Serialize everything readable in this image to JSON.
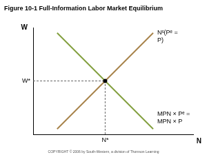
{
  "chart_data": {
    "type": "line",
    "title": "Figure 10-1 Full-Information Labor Market Equilibrium",
    "x_label": "N",
    "y_label": "W",
    "x": [
      1.5,
      4.5,
      7.5
    ],
    "series": [
      {
        "name": "Nˢ(Pᵉ = P)",
        "color": "#a8844c",
        "values": [
          0.5,
          5,
          9.5
        ]
      },
      {
        "name": "MPN × Pᵉ = MPN × P",
        "color": "#84a040",
        "values": [
          9.5,
          5,
          0.5
        ]
      }
    ],
    "equilibrium": {
      "x": 4.5,
      "y": 5,
      "x_label": "N*",
      "y_label": "W*"
    },
    "xlim": [
      0,
      10
    ],
    "ylim": [
      0,
      10
    ],
    "grid": false,
    "tick_labels": false,
    "source": "COPYRIGHT © 2006 by South-Western, a division of Thomson Learning"
  }
}
